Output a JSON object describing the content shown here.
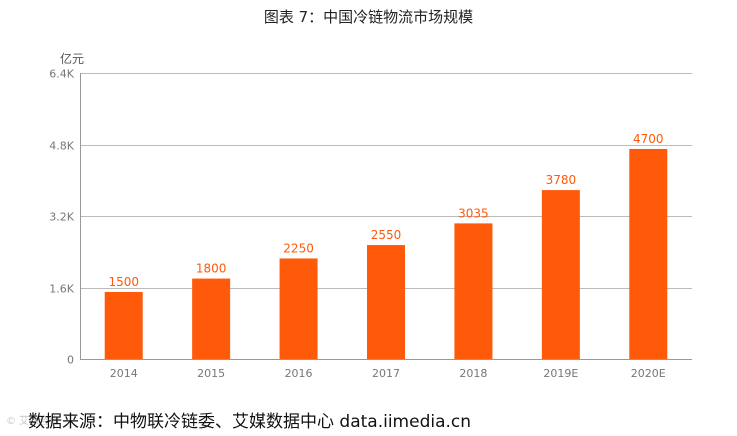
{
  "chart_data": {
    "type": "bar",
    "title": "图表 7：中国冷链物流市场规模",
    "ylabel": "亿元",
    "xlabel": "",
    "categories": [
      "2014",
      "2015",
      "2016",
      "2017",
      "2018",
      "2019E",
      "2020E"
    ],
    "values": [
      1500,
      1800,
      2250,
      2550,
      3035,
      3780,
      4700
    ],
    "data_labels": [
      "1500",
      "1800",
      "2250",
      "2550",
      "3035",
      "3780",
      "4700"
    ],
    "ylim": [
      0,
      6400
    ],
    "yticks": [
      0,
      1600,
      3200,
      4800,
      6400
    ],
    "ytick_labels": [
      "0",
      "1.6K",
      "3.2K",
      "4.8K",
      "6.4K"
    ],
    "grid": true,
    "colors": {
      "bar": "#ff5a0a",
      "label": "#ff5a0a",
      "grid": "#bbbbbb",
      "axis": "#999999",
      "tick_text": "#777777"
    }
  },
  "source": "数据来源：中物联冷链委、艾媒数据中心  data.iimedia.cn",
  "watermark": "© 艾媒咨询"
}
